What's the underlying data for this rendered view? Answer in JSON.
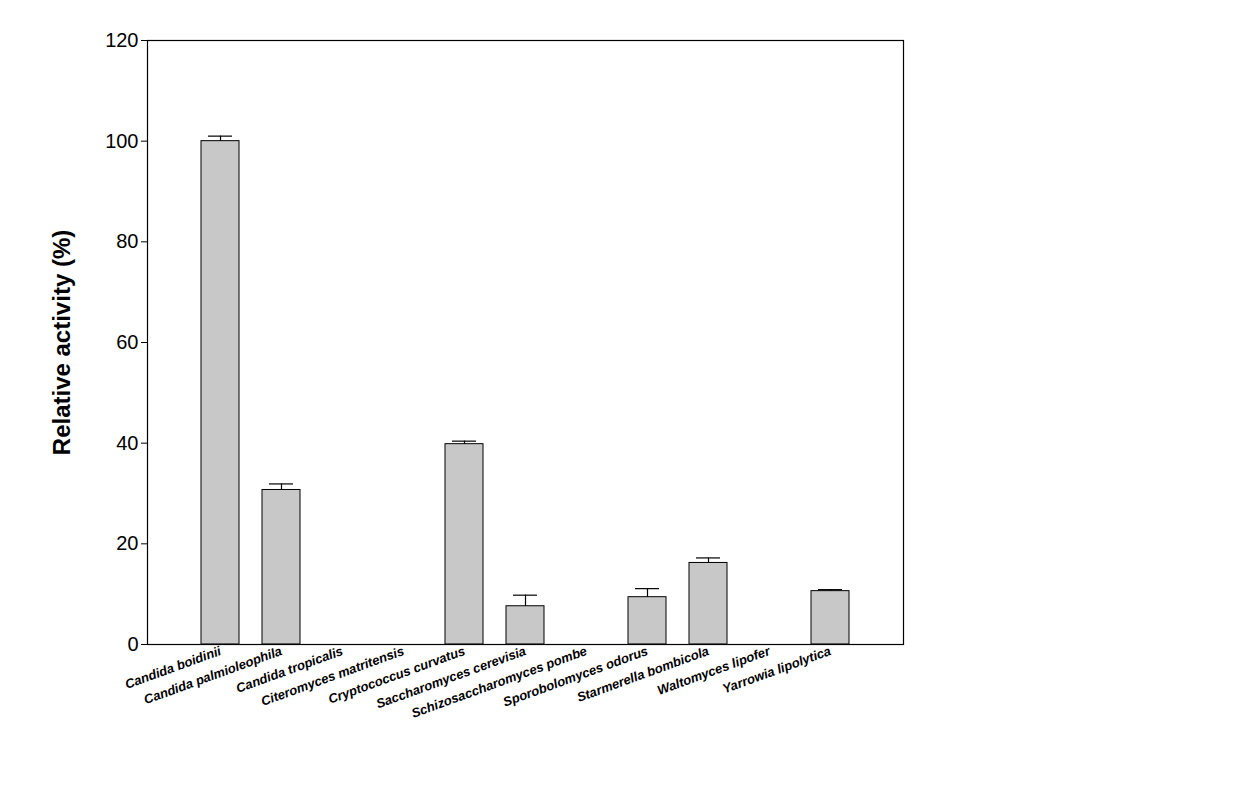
{
  "chart_data": {
    "type": "bar",
    "categories": [
      "Candida boidinii",
      "Candida palmioleophila",
      "Candida tropicalis",
      "Citeromyces matritensis",
      "Cryptococcus curvatus",
      "Saccharomyces cerevisia",
      "Schizosaccharomyces pombe",
      "Sporobolomyces odorus",
      "Starmerella bombicola",
      "Waltomyces lipofer",
      "Yarrowia lipolytica"
    ],
    "values": [
      100,
      30.7,
      0,
      0,
      39.8,
      7.6,
      0,
      9.4,
      16.2,
      0,
      10.6
    ],
    "errors": [
      1.0,
      1.2,
      0,
      0,
      0.6,
      2.2,
      0,
      1.7,
      1.0,
      0,
      0.3
    ],
    "color": "#c8c8c8",
    "y_label": "Relative activity (%)",
    "ylim": [
      0,
      120
    ],
    "yticks": [
      0,
      20,
      40,
      60,
      80,
      100,
      120
    ],
    "grid": false
  }
}
